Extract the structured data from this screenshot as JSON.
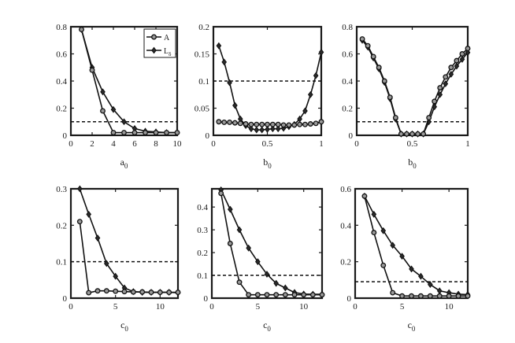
{
  "chart_data": [
    {
      "type": "line",
      "xlabel": "a",
      "xlabel_sub": "0",
      "xlim": [
        0,
        10
      ],
      "ylim": [
        0,
        0.8
      ],
      "xticks": [
        "0",
        "2",
        "4",
        "6",
        "8",
        "10"
      ],
      "yticks": [
        "0",
        "0.2",
        "0.4",
        "0.6",
        "0.8"
      ],
      "ref_y": 0.1,
      "legend": {
        "placement": "top-right",
        "entries": [
          "A",
          "L"
        ],
        "entry_subs": [
          "",
          "δ"
        ]
      },
      "series": [
        {
          "marker": "circle",
          "x": [
            1,
            2,
            3,
            4,
            5,
            6,
            7,
            8,
            9,
            10
          ],
          "y": [
            0.78,
            0.48,
            0.18,
            0.02,
            0.02,
            0.02,
            0.02,
            0.02,
            0.02,
            0.02
          ]
        },
        {
          "marker": "diamond",
          "x": [
            1,
            2,
            3,
            4,
            5,
            6,
            7,
            8,
            9,
            10
          ],
          "y": [
            0.78,
            0.5,
            0.32,
            0.19,
            0.1,
            0.05,
            0.03,
            0.025,
            0.02,
            0.02
          ]
        }
      ]
    },
    {
      "type": "line",
      "xlabel": "b",
      "xlabel_sub": "0",
      "xlim": [
        0,
        1
      ],
      "ylim": [
        0,
        0.2
      ],
      "xticks": [
        "0",
        "0.5",
        "1"
      ],
      "yticks": [
        "0",
        "0.05",
        "0.1",
        "0.15",
        "0.2"
      ],
      "ref_y": 0.1,
      "series": [
        {
          "marker": "circle",
          "x": [
            0.05,
            0.1,
            0.15,
            0.2,
            0.25,
            0.3,
            0.35,
            0.4,
            0.45,
            0.5,
            0.55,
            0.6,
            0.65,
            0.7,
            0.75,
            0.8,
            0.85,
            0.9,
            0.95,
            1.0
          ],
          "y": [
            0.025,
            0.024,
            0.024,
            0.023,
            0.022,
            0.021,
            0.02,
            0.02,
            0.02,
            0.02,
            0.02,
            0.02,
            0.019,
            0.019,
            0.019,
            0.02,
            0.02,
            0.021,
            0.022,
            0.025
          ]
        },
        {
          "marker": "diamond",
          "x": [
            0.05,
            0.1,
            0.15,
            0.2,
            0.25,
            0.3,
            0.35,
            0.4,
            0.45,
            0.5,
            0.55,
            0.6,
            0.65,
            0.7,
            0.75,
            0.8,
            0.85,
            0.9,
            0.95,
            1.0
          ],
          "y": [
            0.165,
            0.135,
            0.097,
            0.055,
            0.03,
            0.018,
            0.012,
            0.01,
            0.01,
            0.011,
            0.012,
            0.012,
            0.013,
            0.016,
            0.02,
            0.03,
            0.045,
            0.075,
            0.11,
            0.153
          ]
        }
      ]
    },
    {
      "type": "line",
      "xlabel": "b",
      "xlabel_sub": "0",
      "xlim": [
        0,
        1
      ],
      "ylim": [
        0,
        0.8
      ],
      "xticks": [
        "0",
        "0.5",
        "1"
      ],
      "yticks": [
        "0",
        "0.2",
        "0.4",
        "0.6",
        "0.8"
      ],
      "ref_y": 0.1,
      "series": [
        {
          "marker": "circle",
          "x": [
            0.05,
            0.1,
            0.15,
            0.2,
            0.25,
            0.3,
            0.35,
            0.4,
            0.45,
            0.5,
            0.55,
            0.6,
            0.65,
            0.7,
            0.75,
            0.8,
            0.85,
            0.9,
            0.95,
            1.0
          ],
          "y": [
            0.71,
            0.66,
            0.58,
            0.5,
            0.4,
            0.28,
            0.13,
            0.01,
            0.01,
            0.01,
            0.01,
            0.01,
            0.13,
            0.25,
            0.35,
            0.43,
            0.5,
            0.55,
            0.6,
            0.64
          ]
        },
        {
          "marker": "diamond",
          "x": [
            0.05,
            0.1,
            0.15,
            0.2,
            0.25,
            0.3,
            0.35,
            0.4,
            0.45,
            0.5,
            0.55,
            0.6,
            0.65,
            0.7,
            0.75,
            0.8,
            0.85,
            0.9,
            0.95,
            1.0
          ],
          "y": [
            0.7,
            0.65,
            0.57,
            0.49,
            0.39,
            0.27,
            0.12,
            0.01,
            0.01,
            0.01,
            0.01,
            0.01,
            0.1,
            0.21,
            0.3,
            0.38,
            0.45,
            0.51,
            0.56,
            0.61
          ]
        }
      ]
    },
    {
      "type": "line",
      "xlabel": "c",
      "xlabel_sub": "0",
      "xlim": [
        0,
        12
      ],
      "ylim": [
        0,
        0.3
      ],
      "xticks": [
        "0",
        "5",
        "10"
      ],
      "xtick_values": [
        0,
        5,
        10
      ],
      "yticks": [
        "0",
        "0.1",
        "0.2",
        "0.3"
      ],
      "ref_y": 0.1,
      "series": [
        {
          "marker": "circle",
          "x": [
            1,
            2,
            3,
            4,
            5,
            6,
            7,
            8,
            9,
            10,
            11,
            12
          ],
          "y": [
            0.21,
            0.015,
            0.02,
            0.02,
            0.019,
            0.018,
            0.017,
            0.017,
            0.016,
            0.016,
            0.016,
            0.016
          ]
        },
        {
          "marker": "diamond",
          "x": [
            1,
            2,
            3,
            4,
            5,
            6,
            7,
            8,
            9,
            10,
            11,
            12
          ],
          "y": [
            0.3,
            0.23,
            0.165,
            0.095,
            0.06,
            0.028,
            0.018,
            0.016,
            0.016,
            0.016,
            0.016,
            0.015
          ]
        }
      ]
    },
    {
      "type": "line",
      "xlabel": "c",
      "xlabel_sub": "0",
      "xlim": [
        0,
        12
      ],
      "ylim": [
        0,
        0.48
      ],
      "xticks": [
        "0",
        "5",
        "10"
      ],
      "xtick_values": [
        0,
        5,
        10
      ],
      "yticks": [
        "0",
        "0.1",
        "0.2",
        "0.3",
        "0.4"
      ],
      "ref_y": 0.1,
      "series": [
        {
          "marker": "circle",
          "x": [
            1,
            2,
            3,
            4,
            5,
            6,
            7,
            8,
            9,
            10,
            11,
            12
          ],
          "y": [
            0.46,
            0.24,
            0.07,
            0.015,
            0.015,
            0.015,
            0.015,
            0.015,
            0.015,
            0.015,
            0.015,
            0.015
          ]
        },
        {
          "marker": "diamond",
          "x": [
            1,
            2,
            3,
            4,
            5,
            6,
            7,
            8,
            9,
            10,
            11,
            12
          ],
          "y": [
            0.475,
            0.39,
            0.3,
            0.22,
            0.16,
            0.105,
            0.065,
            0.045,
            0.025,
            0.018,
            0.017,
            0.017
          ]
        }
      ]
    },
    {
      "type": "line",
      "xlabel": "c",
      "xlabel_sub": "0",
      "xlim": [
        0,
        12
      ],
      "ylim": [
        0,
        0.6
      ],
      "xticks": [
        "0",
        "5",
        "10"
      ],
      "xtick_values": [
        0,
        5,
        10
      ],
      "yticks": [
        "0",
        "0.2",
        "0.4",
        "0.6"
      ],
      "ref_y": 0.09,
      "series": [
        {
          "marker": "circle",
          "x": [
            1,
            2,
            3,
            4,
            5,
            6,
            7,
            8,
            9,
            10,
            11,
            12
          ],
          "y": [
            0.56,
            0.36,
            0.18,
            0.03,
            0.012,
            0.012,
            0.012,
            0.012,
            0.012,
            0.012,
            0.012,
            0.012
          ]
        },
        {
          "marker": "diamond",
          "x": [
            1,
            2,
            3,
            4,
            5,
            6,
            7,
            8,
            9,
            10,
            11,
            12
          ],
          "y": [
            0.56,
            0.46,
            0.37,
            0.29,
            0.23,
            0.16,
            0.12,
            0.075,
            0.04,
            0.03,
            0.022,
            0.02
          ]
        }
      ]
    }
  ]
}
